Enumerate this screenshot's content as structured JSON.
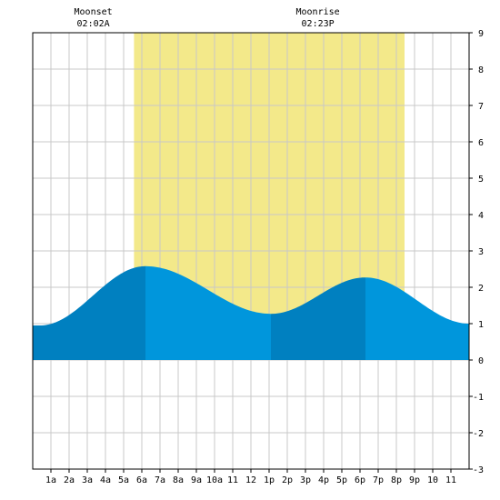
{
  "annotations": [
    {
      "label": "Moonset",
      "time": "02:02A",
      "hour": 2.03
    },
    {
      "label": "Moonrise",
      "time": "02:23P",
      "hour": 14.38
    }
  ],
  "chart_data": {
    "type": "area",
    "title": "",
    "xlabel": "",
    "ylabel": "",
    "xlim": [
      0,
      24
    ],
    "ylim": [
      -3,
      9
    ],
    "grid": true,
    "daylight": {
      "start_hour": 5.57,
      "end_hour": 20.45,
      "color": "#f3e98a"
    },
    "x_ticks": [
      {
        "hour": 1,
        "label": "1a"
      },
      {
        "hour": 2,
        "label": "2a"
      },
      {
        "hour": 3,
        "label": "3a"
      },
      {
        "hour": 4,
        "label": "4a"
      },
      {
        "hour": 5,
        "label": "5a"
      },
      {
        "hour": 6,
        "label": "6a"
      },
      {
        "hour": 7,
        "label": "7a"
      },
      {
        "hour": 8,
        "label": "8a"
      },
      {
        "hour": 9,
        "label": "9a"
      },
      {
        "hour": 10,
        "label": "10a"
      },
      {
        "hour": 11,
        "label": "11"
      },
      {
        "hour": 12,
        "label": "12"
      },
      {
        "hour": 13,
        "label": "1p"
      },
      {
        "hour": 14,
        "label": "2p"
      },
      {
        "hour": 15,
        "label": "3p"
      },
      {
        "hour": 16,
        "label": "4p"
      },
      {
        "hour": 17,
        "label": "5p"
      },
      {
        "hour": 18,
        "label": "6p"
      },
      {
        "hour": 19,
        "label": "7p"
      },
      {
        "hour": 20,
        "label": "8p"
      },
      {
        "hour": 21,
        "label": "9p"
      },
      {
        "hour": 22,
        "label": "10"
      },
      {
        "hour": 23,
        "label": "11"
      }
    ],
    "y_ticks": [
      {
        "value": 9,
        "label": "9"
      },
      {
        "value": 8,
        "label": "8"
      },
      {
        "value": 7,
        "label": "7"
      },
      {
        "value": 6,
        "label": "6"
      },
      {
        "value": 5,
        "label": "5"
      },
      {
        "value": 4,
        "label": "4"
      },
      {
        "value": 3,
        "label": "3"
      },
      {
        "value": 2,
        "label": "2"
      },
      {
        "value": 1,
        "label": "1"
      },
      {
        "value": 0,
        "label": "0"
      },
      {
        "value": -1,
        "label": "-1"
      },
      {
        "value": -2,
        "label": "-2"
      },
      {
        "value": -3,
        "label": "-3"
      }
    ],
    "tide_extremes": [
      {
        "hour": 0.4,
        "value": 0.95,
        "kind": "low"
      },
      {
        "hour": 6.2,
        "value": 2.58,
        "kind": "high"
      },
      {
        "hour": 13.1,
        "value": 1.27,
        "kind": "low"
      },
      {
        "hour": 18.3,
        "value": 2.27,
        "kind": "high"
      },
      {
        "hour": 24.0,
        "value": 1.0,
        "kind": "low"
      }
    ],
    "rising_color": "#0080c0",
    "falling_color": "#0096dc",
    "background_color": "#ffffff",
    "grid_color": "#c8c8c8"
  }
}
